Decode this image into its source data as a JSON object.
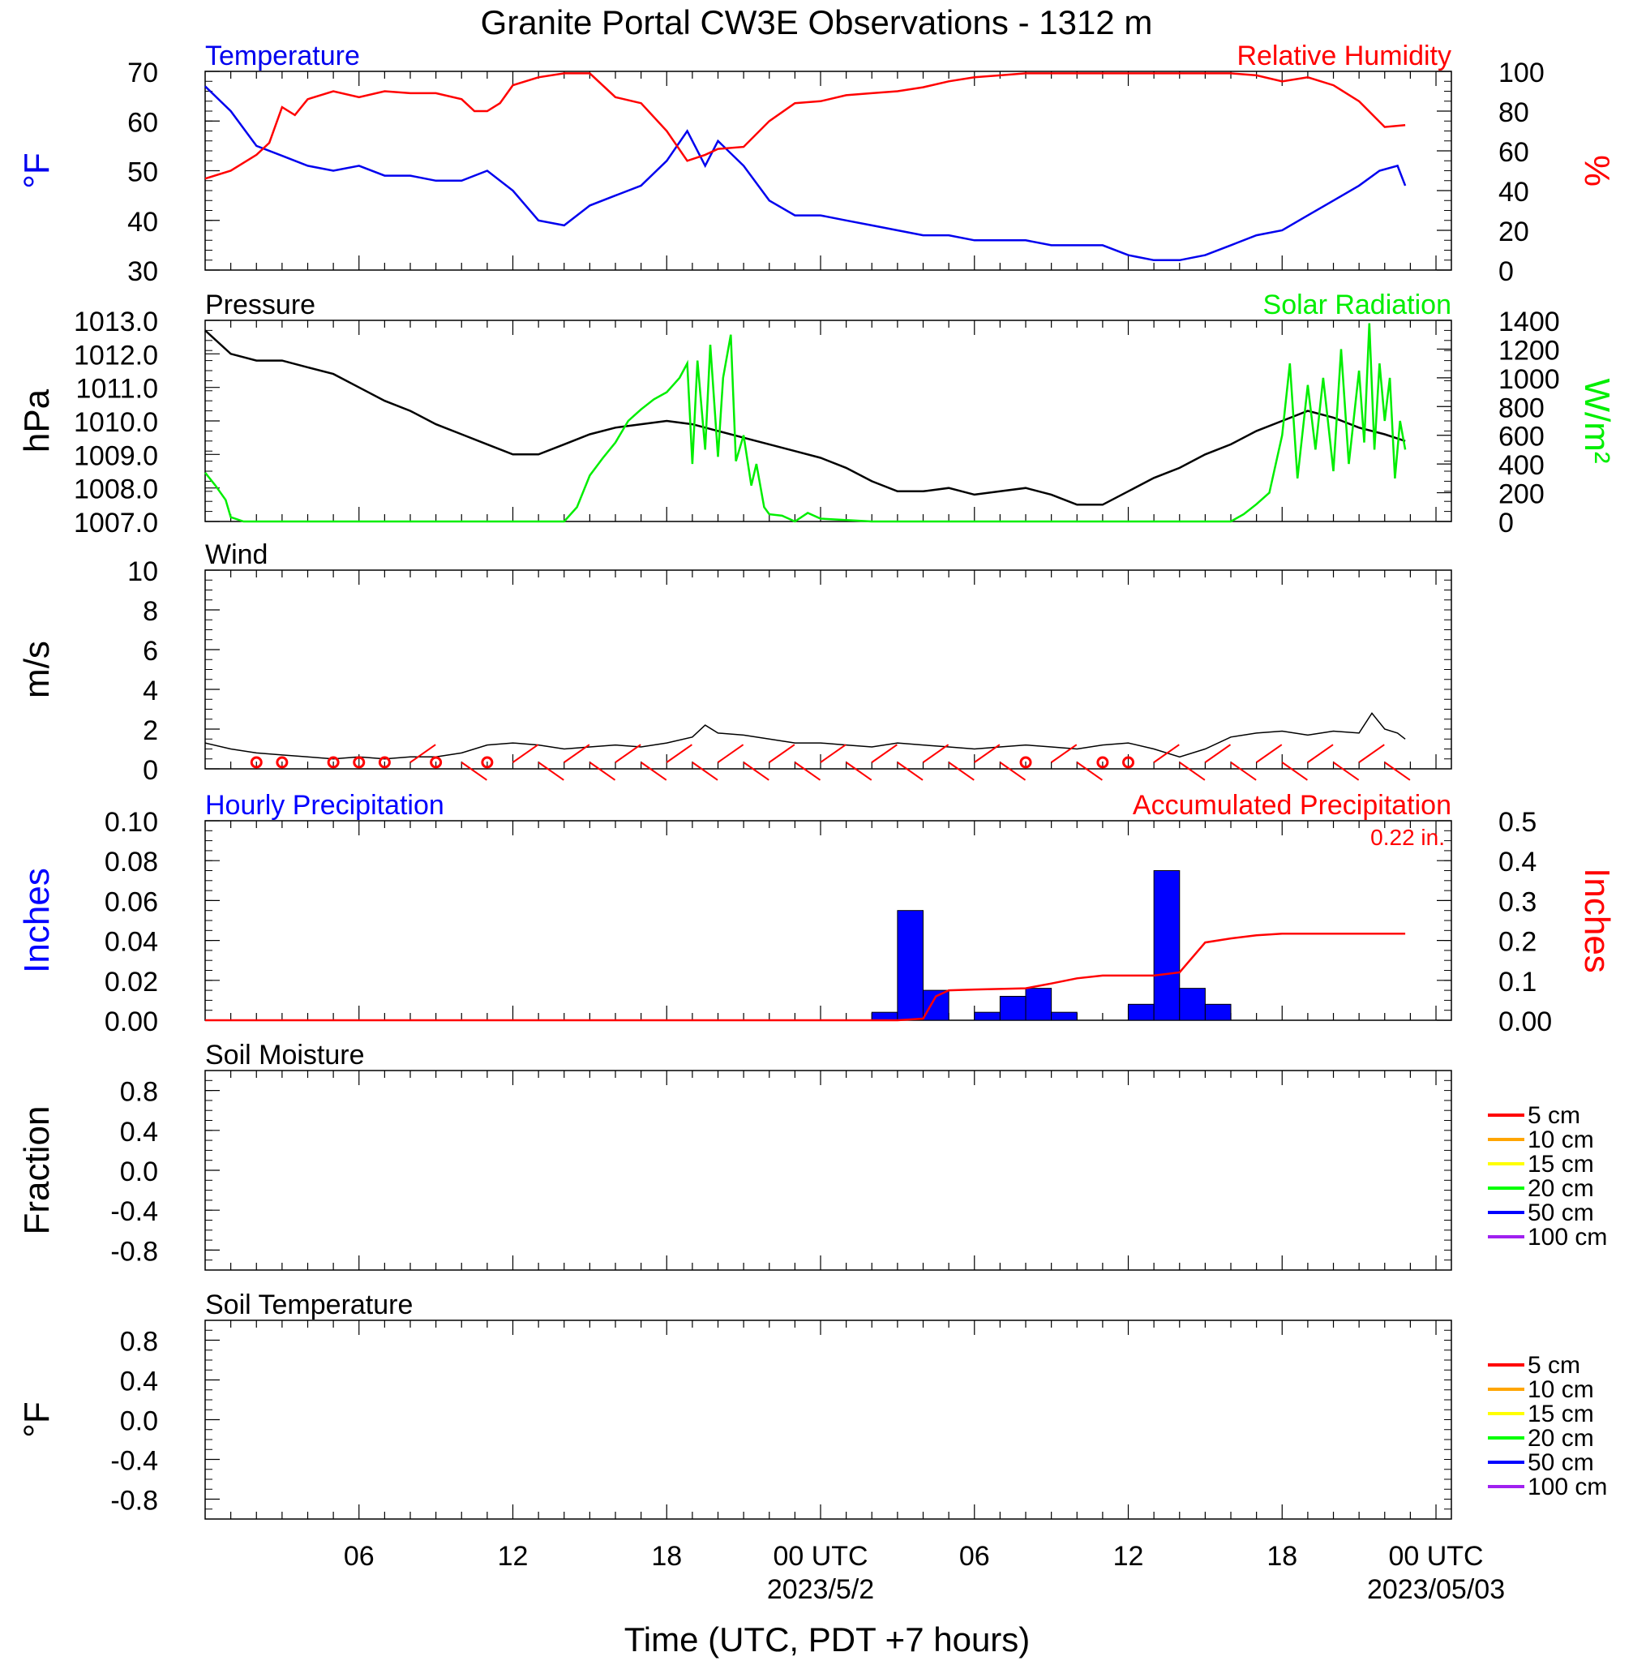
{
  "title": "Granite Portal CW3E Observations - 1312 m",
  "x_axis_title": "Time (UTC, PDT +7 hours)",
  "x_ticks": [
    {
      "hour": 6,
      "label": "06",
      "date": ""
    },
    {
      "hour": 12,
      "label": "12",
      "date": ""
    },
    {
      "hour": 18,
      "label": "18",
      "date": ""
    },
    {
      "hour": 24,
      "label": "00 UTC",
      "date": "2023/5/2"
    },
    {
      "hour": 30,
      "label": "06",
      "date": ""
    },
    {
      "hour": 36,
      "label": "12",
      "date": ""
    },
    {
      "hour": 42,
      "label": "18",
      "date": ""
    },
    {
      "hour": 48,
      "label": "00 UTC",
      "date": "2023/05/03"
    }
  ],
  "colors": {
    "temperature": "#0000ee",
    "humidity": "#ff0000",
    "pressure": "#000000",
    "solar": "#00ee00",
    "wind": "#000000",
    "wind_barb": "#ff0000",
    "hourly_precip": "#0000ff",
    "accum_precip": "#ff0000"
  },
  "legend_depths": [
    {
      "label": "5 cm",
      "color": "#ff0000"
    },
    {
      "label": "10 cm",
      "color": "#ffa500"
    },
    {
      "label": "15 cm",
      "color": "#ffff00"
    },
    {
      "label": "20 cm",
      "color": "#00ff00"
    },
    {
      "label": "50 cm",
      "color": "#0000ff"
    },
    {
      "label": "100 cm",
      "color": "#a020f0"
    }
  ],
  "chart_data": [
    {
      "type": "line",
      "panel": "temp_rh",
      "title_left": "Temperature",
      "title_right": "Relative Humidity",
      "ylabel_left": "°F",
      "ylabel_right": "%",
      "xlim": [
        0,
        48
      ],
      "ylim_left": [
        30,
        70
      ],
      "ylim_right": [
        0,
        100
      ],
      "yticks_left": [
        "70",
        "60",
        "50",
        "40",
        "30"
      ],
      "yticks_right": [
        "100",
        "80",
        "60",
        "40",
        "20",
        "0"
      ],
      "series": [
        {
          "name": "Temperature",
          "axis": "left",
          "color": "#0000ee",
          "x": [
            0,
            1,
            2,
            3,
            4,
            5,
            6,
            7,
            8,
            9,
            10,
            11,
            12,
            13,
            14,
            15,
            16,
            17,
            18,
            18.8,
            19.5,
            20,
            21,
            22,
            23,
            24,
            25,
            26,
            27,
            28,
            29,
            30,
            31,
            32,
            33,
            34,
            35,
            36,
            37,
            38,
            39,
            40,
            41,
            42,
            43,
            44,
            45,
            45.8,
            46.5,
            46.8
          ],
          "y": [
            67,
            62,
            55,
            53,
            51,
            50,
            51,
            49,
            49,
            48,
            48,
            50,
            46,
            40,
            39,
            43,
            45,
            47,
            52,
            58,
            51,
            56,
            51,
            44,
            41,
            41,
            40,
            39,
            38,
            37,
            37,
            36,
            36,
            36,
            35,
            35,
            35,
            33,
            32,
            32,
            33,
            35,
            37,
            38,
            41,
            44,
            47,
            50,
            51,
            47
          ]
        },
        {
          "name": "Relative Humidity",
          "axis": "right",
          "color": "#ff0000",
          "x": [
            0,
            1,
            2,
            2.5,
            3,
            3.5,
            4,
            5,
            6,
            7,
            8,
            9,
            10,
            10.5,
            11,
            11.5,
            12,
            13,
            14,
            15,
            16,
            17,
            18,
            18.8,
            19.5,
            20,
            21,
            22,
            23,
            24,
            25,
            26,
            27,
            28,
            29,
            30,
            31,
            32,
            33,
            34,
            35,
            36,
            37,
            38,
            39,
            40,
            41,
            42,
            43,
            44,
            45,
            46,
            46.8
          ],
          "y": [
            46,
            50,
            58,
            64,
            82,
            78,
            86,
            90,
            87,
            90,
            89,
            89,
            86,
            80,
            80,
            84,
            93,
            97,
            99,
            99,
            87,
            84,
            70,
            55,
            58,
            61,
            62,
            75,
            84,
            85,
            88,
            89,
            90,
            92,
            95,
            97,
            98,
            99,
            99,
            99,
            99,
            99,
            99,
            99,
            99,
            99,
            98,
            95,
            97,
            93,
            85,
            72,
            73
          ]
        }
      ]
    },
    {
      "type": "line",
      "panel": "pressure_solar",
      "title_left": "Pressure",
      "title_right": "Solar Radiation",
      "ylabel_left": "hPa",
      "ylabel_right": "W/m²",
      "xlim": [
        0,
        48
      ],
      "ylim_left": [
        1007.0,
        1013.0
      ],
      "ylim_right": [
        0,
        1400
      ],
      "yticks_left": [
        "1013.0",
        "1012.0",
        "1011.0",
        "1010.0",
        "1009.0",
        "1008.0",
        "1007.0"
      ],
      "yticks_right": [
        "1400",
        "1200",
        "1000",
        "800",
        "600",
        "400",
        "200",
        "0"
      ],
      "series": [
        {
          "name": "Pressure",
          "axis": "left",
          "color": "#000000",
          "x": [
            0,
            1,
            2,
            3,
            4,
            5,
            6,
            7,
            8,
            9,
            10,
            11,
            12,
            13,
            14,
            15,
            16,
            17,
            18,
            19,
            20,
            21,
            22,
            23,
            24,
            25,
            26,
            27,
            28,
            29,
            30,
            31,
            32,
            33,
            34,
            35,
            36,
            37,
            38,
            39,
            40,
            41,
            42,
            43,
            44,
            45,
            46,
            46.8
          ],
          "y": [
            1012.7,
            1012.0,
            1011.8,
            1011.8,
            1011.6,
            1011.4,
            1011.0,
            1010.6,
            1010.3,
            1009.9,
            1009.6,
            1009.3,
            1009.0,
            1009.0,
            1009.3,
            1009.6,
            1009.8,
            1009.9,
            1010.0,
            1009.9,
            1009.7,
            1009.5,
            1009.3,
            1009.1,
            1008.9,
            1008.6,
            1008.2,
            1007.9,
            1007.9,
            1008.0,
            1007.8,
            1007.9,
            1008.0,
            1007.8,
            1007.5,
            1007.5,
            1007.9,
            1008.3,
            1008.6,
            1009.0,
            1009.3,
            1009.7,
            1010.0,
            1010.3,
            1010.1,
            1009.8,
            1009.6,
            1009.4
          ]
        },
        {
          "name": "Solar Radiation",
          "axis": "right",
          "color": "#00ee00",
          "x": [
            0,
            0.4,
            0.8,
            1.0,
            1.5,
            2,
            5,
            10,
            13,
            14,
            14.5,
            15,
            15.5,
            16,
            16.5,
            17,
            17.5,
            18,
            18.5,
            18.8,
            19.0,
            19.2,
            19.5,
            19.7,
            20.0,
            20.2,
            20.5,
            20.7,
            21.0,
            21.3,
            21.5,
            21.8,
            22,
            22.5,
            23,
            23.5,
            24,
            25,
            26,
            28,
            30,
            35,
            38,
            40,
            40.5,
            41,
            41.5,
            42,
            42.3,
            42.6,
            43.0,
            43.3,
            43.6,
            44.0,
            44.3,
            44.6,
            45.0,
            45.2,
            45.4,
            45.6,
            45.8,
            46.0,
            46.2,
            46.4,
            46.6,
            46.8
          ],
          "y": [
            340,
            250,
            150,
            30,
            0,
            0,
            0,
            0,
            0,
            0,
            100,
            320,
            440,
            550,
            700,
            780,
            850,
            900,
            1000,
            1100,
            400,
            1120,
            500,
            1230,
            450,
            1000,
            1300,
            420,
            600,
            250,
            400,
            100,
            50,
            40,
            0,
            60,
            20,
            10,
            0,
            0,
            0,
            0,
            0,
            0,
            50,
            120,
            200,
            600,
            1100,
            300,
            950,
            500,
            1000,
            350,
            1200,
            400,
            1050,
            550,
            1380,
            500,
            1100,
            700,
            1000,
            300,
            700,
            500
          ]
        }
      ]
    },
    {
      "type": "line",
      "panel": "wind",
      "title_left": "Wind",
      "ylabel_left": "m/s",
      "xlim": [
        0,
        48
      ],
      "ylim_left": [
        0,
        10
      ],
      "yticks_left": [
        "10",
        "8",
        "6",
        "4",
        "2",
        "0"
      ],
      "series": [
        {
          "name": "Wind",
          "axis": "left",
          "color": "#000000",
          "x": [
            0,
            1,
            2,
            3,
            4,
            5,
            6,
            7,
            8,
            9,
            10,
            11,
            12,
            13,
            14,
            15,
            16,
            17,
            18,
            19,
            19.5,
            20,
            21,
            22,
            23,
            24,
            25,
            26,
            27,
            28,
            29,
            30,
            31,
            32,
            33,
            34,
            35,
            36,
            37,
            38,
            39,
            40,
            41,
            42,
            43,
            44,
            45,
            45.5,
            46,
            46.5,
            46.8
          ],
          "y": [
            1.3,
            1.0,
            0.8,
            0.7,
            0.6,
            0.5,
            0.6,
            0.5,
            0.6,
            0.6,
            0.8,
            1.2,
            1.3,
            1.2,
            1.0,
            1.1,
            1.2,
            1.1,
            1.3,
            1.6,
            2.2,
            1.8,
            1.7,
            1.5,
            1.3,
            1.3,
            1.2,
            1.1,
            1.3,
            1.2,
            1.1,
            1.0,
            1.1,
            1.2,
            1.1,
            1.0,
            1.2,
            1.3,
            1.0,
            0.6,
            1.0,
            1.6,
            1.8,
            1.9,
            1.7,
            1.9,
            1.8,
            2.8,
            2.0,
            1.8,
            1.5
          ]
        }
      ],
      "barbs": {
        "color": "#ff0000",
        "calm_hours": [
          2,
          3,
          5,
          6,
          7,
          9,
          11,
          32,
          35,
          36
        ],
        "barb_hours": [
          8,
          10,
          12,
          13,
          14,
          15,
          16,
          17,
          18,
          19,
          20,
          21,
          22,
          23,
          24,
          25,
          26,
          27,
          28,
          29,
          30,
          31,
          33,
          34,
          37,
          38,
          39,
          40,
          41,
          42,
          43,
          44,
          45,
          46
        ]
      }
    },
    {
      "type": "bar",
      "panel": "precip",
      "title_left": "Hourly Precipitation",
      "title_right": "Accumulated Precipitation",
      "total_label": "0.22 in.",
      "ylabel_left": "Inches",
      "ylabel_right": "Inches",
      "xlim": [
        0,
        48
      ],
      "ylim_left": [
        0,
        0.1
      ],
      "ylim_right": [
        0,
        0.5
      ],
      "yticks_left": [
        "0.10",
        "0.08",
        "0.06",
        "0.04",
        "0.02",
        "0.00"
      ],
      "yticks_right": [
        "0.5",
        "0.4",
        "0.3",
        "0.2",
        "0.1",
        "0.00"
      ],
      "series": [
        {
          "name": "Hourly Precipitation",
          "axis": "left",
          "color": "#0000ff",
          "x": [
            27,
            28,
            29,
            31,
            32,
            33,
            34,
            37,
            38,
            39,
            40,
            41
          ],
          "y": [
            0.004,
            0.055,
            0.015,
            0.004,
            0.012,
            0.016,
            0.004,
            0.008,
            0.075,
            0.016,
            0.008,
            0.0
          ]
        },
        {
          "name": "Accumulated Precipitation",
          "axis": "right",
          "color": "#ff0000",
          "x": [
            0,
            27,
            28,
            28.5,
            29,
            30,
            32,
            33,
            34,
            35,
            37,
            38,
            39,
            40,
            41,
            42,
            46.8
          ],
          "y": [
            0,
            0,
            0.004,
            0.06,
            0.075,
            0.077,
            0.08,
            0.092,
            0.105,
            0.112,
            0.112,
            0.12,
            0.195,
            0.205,
            0.213,
            0.217,
            0.217
          ]
        }
      ]
    },
    {
      "type": "line",
      "panel": "soil_moisture",
      "title_left": "Soil Moisture",
      "ylabel_left": "Fraction",
      "xlim": [
        0,
        48
      ],
      "ylim_left": [
        -1,
        1
      ],
      "yticks_left": [
        "0.8",
        "0.4",
        "0.0",
        "-0.4",
        "-0.8"
      ],
      "series": []
    },
    {
      "type": "line",
      "panel": "soil_temp",
      "title_left": "Soil Temperature",
      "ylabel_left": "°F",
      "xlim": [
        0,
        48
      ],
      "ylim_left": [
        -1,
        1
      ],
      "yticks_left": [
        "0.8",
        "0.4",
        "0.0",
        "-0.4",
        "-0.8"
      ],
      "series": []
    }
  ]
}
